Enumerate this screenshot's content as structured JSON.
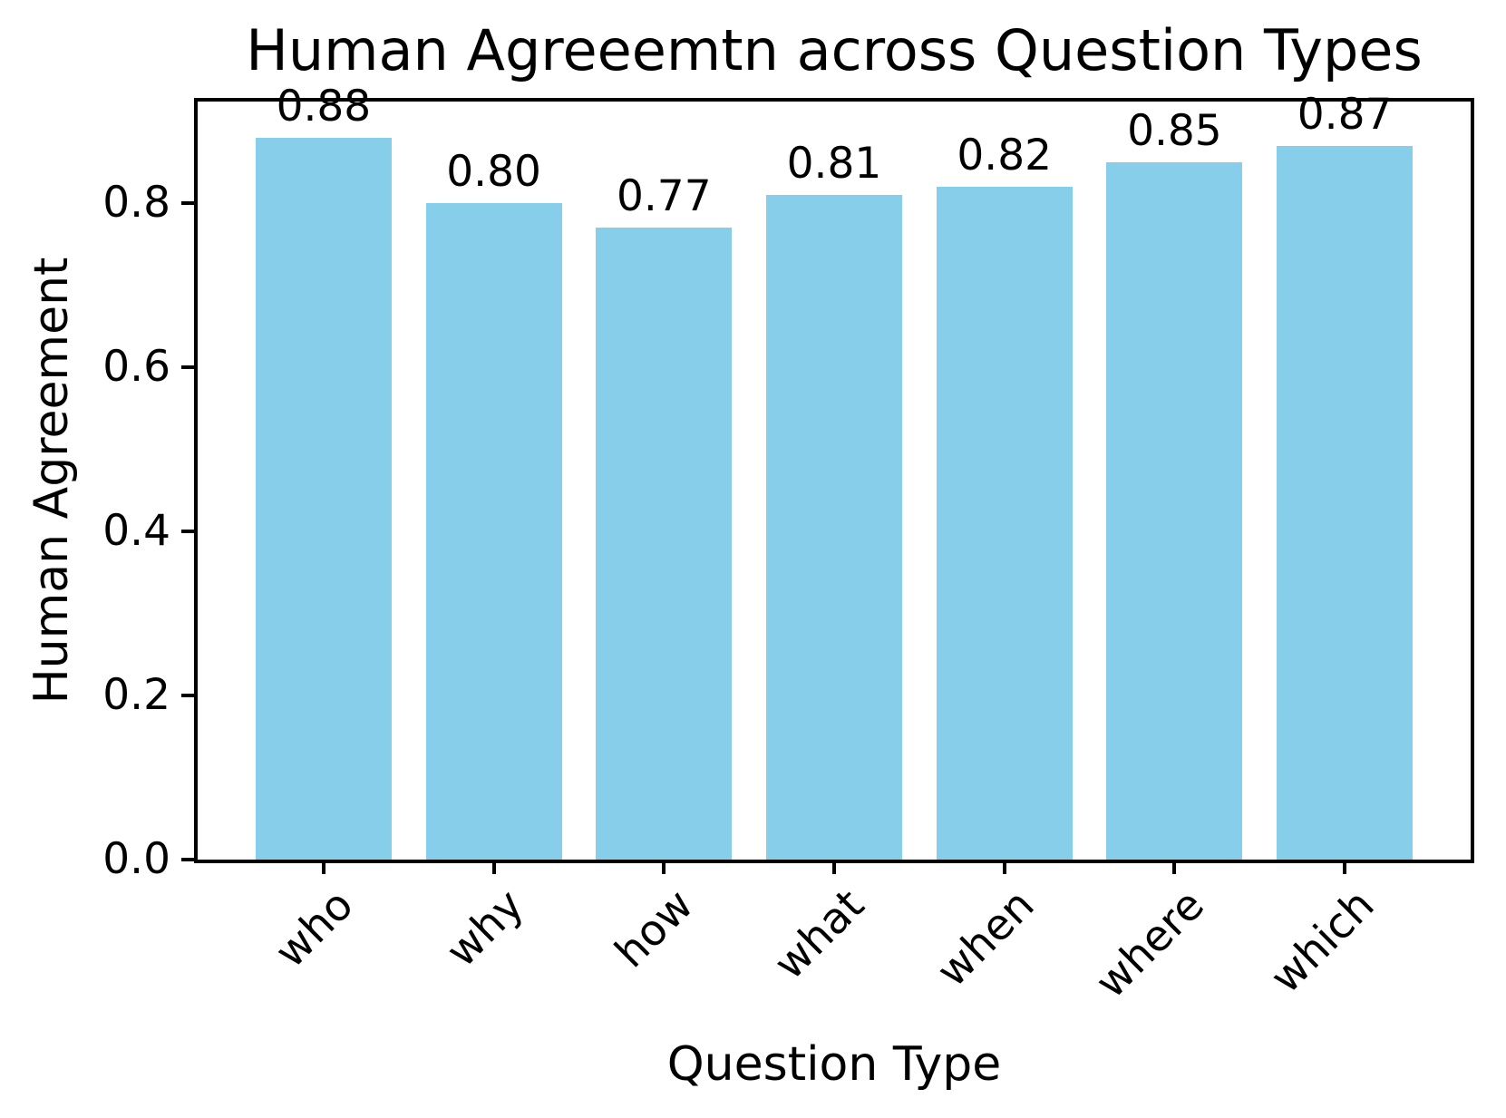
{
  "figure": {
    "background": "#ffffff"
  },
  "chart_data": {
    "type": "bar",
    "title": "Human Agreeemtn across Question Types",
    "xlabel": "Question Type",
    "ylabel": "Human Agreement",
    "categories": [
      "who",
      "why",
      "how",
      "what",
      "when",
      "where",
      "which"
    ],
    "values": [
      0.88,
      0.8,
      0.77,
      0.81,
      0.82,
      0.85,
      0.87
    ],
    "bar_value_labels": [
      "0.88",
      "0.80",
      "0.77",
      "0.81",
      "0.82",
      "0.85",
      "0.87"
    ],
    "bar_color": "#87CEEB",
    "text_color": "#000000",
    "spine_color": "#000000",
    "bar_width": 0.8,
    "xlim": [
      -0.74,
      6.74
    ],
    "ylim": [
      0,
      0.924
    ],
    "yticks": [
      0.0,
      0.2,
      0.4,
      0.6,
      0.8
    ],
    "ytick_labels": [
      "0.0",
      "0.2",
      "0.4",
      "0.6",
      "0.8"
    ],
    "xtick_rotation_deg": 45,
    "grid": false,
    "legend": null
  }
}
